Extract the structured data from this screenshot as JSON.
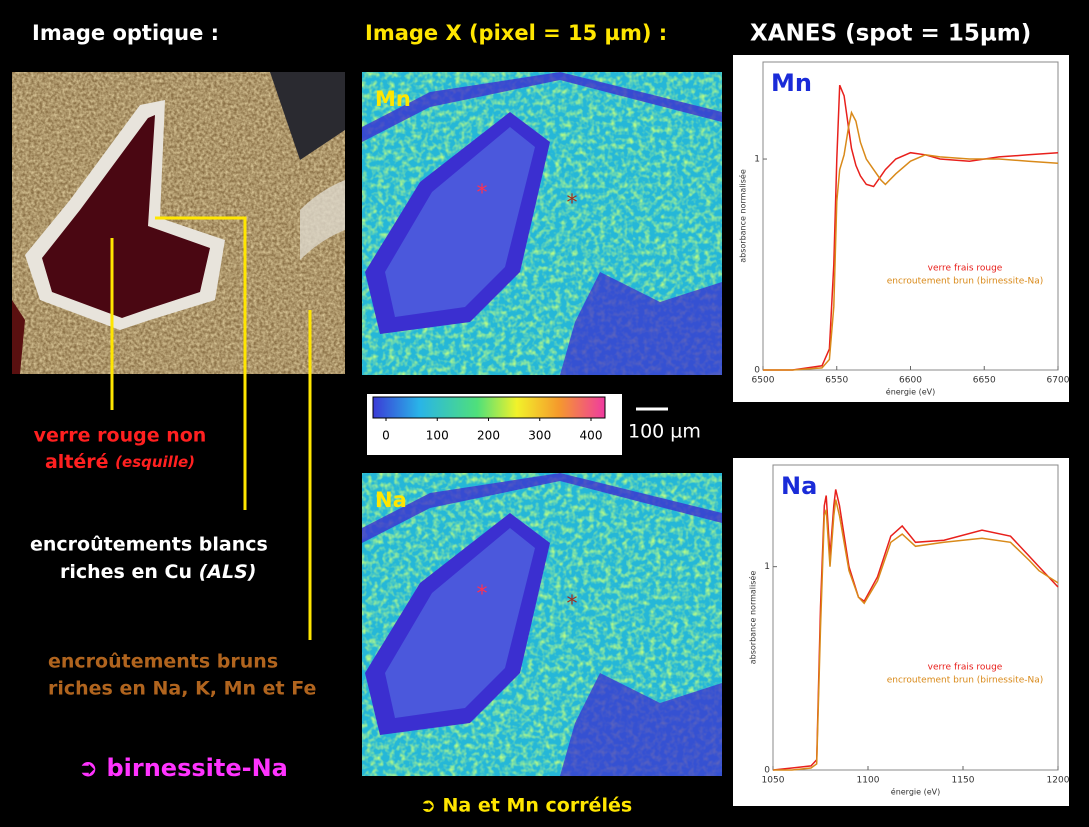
{
  "titles": {
    "optical": "Image optique :",
    "xray": "Image X (pixel = 15 µm) :",
    "xanes": "XANES (spot = 15µm)"
  },
  "annotations": {
    "red_glass": {
      "line1": "verre rouge non",
      "line2": "altéré",
      "note": "(esquille)"
    },
    "white_crust": {
      "line1": "encroûtements blancs",
      "line2": "riches en Cu",
      "note": "(ALS)"
    },
    "brown_crust": {
      "line1": "encroûtements bruns",
      "line2": "riches en Na, K, Mn et Fe"
    },
    "birnessite": "➲ birnessite-Na",
    "correlated": "➲ Na et Mn corrélés"
  },
  "maps": [
    {
      "label": "Mn"
    },
    {
      "label": "Na"
    }
  ],
  "colorbar": {
    "ticks": [
      0,
      100,
      200,
      300,
      400
    ]
  },
  "scale_bar": "100 µm",
  "chart_data": [
    {
      "type": "line",
      "title": "Mn",
      "xlabel": "énergie (eV)",
      "ylabel": "absorbance normalisée",
      "x": [
        6500,
        6520,
        6540,
        6545,
        6548,
        6550,
        6552,
        6555,
        6558,
        6560,
        6563,
        6566,
        6570,
        6575,
        6580,
        6583,
        6590,
        6600,
        6610,
        6620,
        6640,
        6660,
        6680,
        6700
      ],
      "series": [
        {
          "name": "verre frais rouge",
          "color": "#e8201c",
          "values": [
            0,
            0,
            0.02,
            0.1,
            0.5,
            1.0,
            1.35,
            1.3,
            1.15,
            1.05,
            0.97,
            0.92,
            0.88,
            0.87,
            0.92,
            0.95,
            1.0,
            1.03,
            1.02,
            1.0,
            0.99,
            1.01,
            1.02,
            1.03
          ]
        },
        {
          "name": "encroutement brun (birnessite-Na)",
          "color": "#d98a1a",
          "values": [
            0,
            0,
            0.01,
            0.05,
            0.3,
            0.8,
            0.95,
            1.02,
            1.15,
            1.22,
            1.18,
            1.08,
            1.0,
            0.95,
            0.9,
            0.88,
            0.93,
            0.99,
            1.02,
            1.01,
            1.0,
            1.0,
            0.99,
            0.98
          ]
        }
      ],
      "xlim": [
        6500,
        6700
      ],
      "ylim": [
        0,
        1.46
      ],
      "xticks": [
        6500,
        6550,
        6600,
        6650,
        6700
      ],
      "yticks": [
        0,
        1
      ]
    },
    {
      "type": "line",
      "title": "Na",
      "xlabel": "énergie (eV)",
      "ylabel": "absorbance normalisée",
      "x": [
        1050,
        1060,
        1070,
        1073,
        1075,
        1077,
        1078,
        1080,
        1082,
        1083,
        1085,
        1090,
        1095,
        1098,
        1105,
        1112,
        1118,
        1125,
        1140,
        1160,
        1175,
        1185,
        1190,
        1200
      ],
      "series": [
        {
          "name": "verre frais rouge",
          "color": "#e8201c",
          "values": [
            0,
            0.01,
            0.02,
            0.05,
            0.8,
            1.3,
            1.35,
            1.05,
            1.3,
            1.38,
            1.3,
            1.0,
            0.85,
            0.83,
            0.95,
            1.15,
            1.2,
            1.12,
            1.13,
            1.18,
            1.15,
            1.05,
            1.0,
            0.9
          ]
        },
        {
          "name": "encroutement brun (birnessite-Na)",
          "color": "#d98a1a",
          "values": [
            0,
            0,
            0.01,
            0.03,
            0.7,
            1.25,
            1.28,
            1.0,
            1.25,
            1.33,
            1.25,
            0.98,
            0.85,
            0.82,
            0.93,
            1.12,
            1.16,
            1.1,
            1.12,
            1.14,
            1.12,
            1.03,
            0.98,
            0.92
          ]
        }
      ],
      "xlim": [
        1050,
        1200
      ],
      "ylim": [
        0,
        1.5
      ],
      "xticks": [
        1050,
        1100,
        1150,
        1200
      ],
      "yticks": [
        0,
        1
      ]
    }
  ]
}
